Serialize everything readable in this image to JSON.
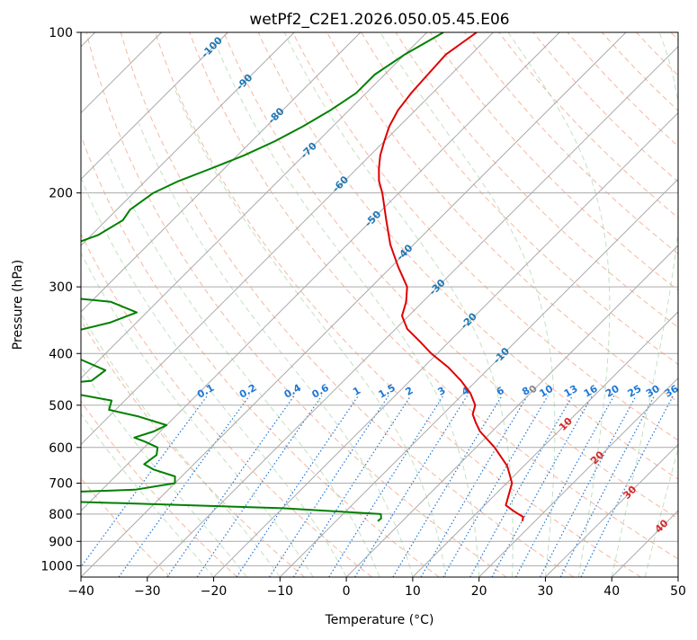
{
  "chart_data": {
    "type": "line",
    "title": "wetPf2_C2E1.2026.050.05.45.E06",
    "xlabel": "Temperature (°C)",
    "ylabel": "Pressure (hPa)",
    "xlim": [
      -40,
      50
    ],
    "ylim": [
      1050,
      100
    ],
    "y_scale": "log",
    "grid": true,
    "x_ticks": [
      -40,
      -30,
      -20,
      -10,
      0,
      10,
      20,
      30,
      40,
      50
    ],
    "y_ticks": [
      100,
      200,
      300,
      400,
      500,
      600,
      700,
      800,
      900,
      1000
    ],
    "skew_deg": 45,
    "colors": {
      "temperature": "#e00000",
      "dewpoint": "#008000",
      "dry_adiabat": "#f2a080",
      "moist_adiabat": "#9acd9a",
      "mixing_ratio": "#1f77d4",
      "isotherm_labels": "#1f77b4",
      "warm_labels": "#d62728"
    },
    "isotherm_labels": [
      -100,
      -90,
      -80,
      -70,
      -60,
      -50,
      -40,
      -30,
      -20,
      -10,
      0,
      10,
      20,
      30,
      40
    ],
    "mixing_ratio_labels": [
      "0.1",
      "0.2",
      "0.4",
      "0.6",
      "1",
      "1.5",
      "2",
      "3",
      "4",
      "6",
      "8",
      "10",
      "13",
      "16",
      "20",
      "25",
      "30",
      "36"
    ],
    "series": [
      {
        "points": [
          {
            "p": 100,
            "t": -62.5
          },
          {
            "p": 110,
            "t": -63.8
          },
          {
            "p": 120,
            "t": -63.5
          },
          {
            "p": 130,
            "t": -63.2
          },
          {
            "p": 140,
            "t": -62.6
          },
          {
            "p": 150,
            "t": -61.5
          },
          {
            "p": 160,
            "t": -60.0
          },
          {
            "p": 170,
            "t": -58.5
          },
          {
            "p": 180,
            "t": -56.7
          },
          {
            "p": 190,
            "t": -54.8
          },
          {
            "p": 200,
            "t": -52.5
          },
          {
            "p": 225,
            "t": -47.8
          },
          {
            "p": 250,
            "t": -43.5
          },
          {
            "p": 275,
            "t": -39.0
          },
          {
            "p": 300,
            "t": -34.6
          },
          {
            "p": 320,
            "t": -32.5
          },
          {
            "p": 340,
            "t": -31.0
          },
          {
            "p": 360,
            "t": -28.2
          },
          {
            "p": 380,
            "t": -24.4
          },
          {
            "p": 400,
            "t": -20.9
          },
          {
            "p": 425,
            "t": -16.2
          },
          {
            "p": 450,
            "t": -12.3
          },
          {
            "p": 475,
            "t": -9.0
          },
          {
            "p": 500,
            "t": -6.5
          },
          {
            "p": 520,
            "t": -5.5
          },
          {
            "p": 540,
            "t": -3.7
          },
          {
            "p": 560,
            "t": -1.8
          },
          {
            "p": 600,
            "t": 2.8
          },
          {
            "p": 650,
            "t": 7.5
          },
          {
            "p": 700,
            "t": 10.8
          },
          {
            "p": 740,
            "t": 12.2
          },
          {
            "p": 770,
            "t": 13.2
          },
          {
            "p": 790,
            "t": 15.3
          },
          {
            "p": 810,
            "t": 17.6
          },
          {
            "p": 825,
            "t": 18.1
          }
        ]
      },
      {
        "points": [
          {
            "p": 100,
            "t": -67.5
          },
          {
            "p": 110,
            "t": -70.0
          },
          {
            "p": 120,
            "t": -71.5
          },
          {
            "p": 130,
            "t": -71.5
          },
          {
            "p": 140,
            "t": -72.8
          },
          {
            "p": 150,
            "t": -74.5
          },
          {
            "p": 160,
            "t": -76.5
          },
          {
            "p": 170,
            "t": -79.0
          },
          {
            "p": 180,
            "t": -82.0
          },
          {
            "p": 190,
            "t": -85.0
          },
          {
            "p": 200,
            "t": -87.0
          },
          {
            "p": 215,
            "t": -88.0
          },
          {
            "p": 225,
            "t": -87.5
          },
          {
            "p": 240,
            "t": -89.0
          },
          {
            "p": 250,
            "t": -91.5
          },
          {
            "p": 265,
            "t": -91.8
          },
          {
            "p": 280,
            "t": -88.5
          },
          {
            "p": 290,
            "t": -89.0
          },
          {
            "p": 298,
            "t": -94.0
          },
          {
            "p": 302,
            "t": -100.5
          },
          {
            "p": 308,
            "t": -92.0
          },
          {
            "p": 320,
            "t": -77.0
          },
          {
            "p": 335,
            "t": -71.5
          },
          {
            "p": 350,
            "t": -74.0
          },
          {
            "p": 370,
            "t": -80.0
          },
          {
            "p": 390,
            "t": -80.5
          },
          {
            "p": 410,
            "t": -73.0
          },
          {
            "p": 430,
            "t": -67.5
          },
          {
            "p": 450,
            "t": -68.0
          },
          {
            "p": 465,
            "t": -78.5
          },
          {
            "p": 475,
            "t": -69.0
          },
          {
            "p": 490,
            "t": -62.0
          },
          {
            "p": 510,
            "t": -61.0
          },
          {
            "p": 525,
            "t": -55.5
          },
          {
            "p": 545,
            "t": -50.0
          },
          {
            "p": 560,
            "t": -51.0
          },
          {
            "p": 575,
            "t": -53.0
          },
          {
            "p": 585,
            "t": -50.8
          },
          {
            "p": 600,
            "t": -48.0
          },
          {
            "p": 620,
            "t": -47.0
          },
          {
            "p": 645,
            "t": -47.5
          },
          {
            "p": 660,
            "t": -45.3
          },
          {
            "p": 680,
            "t": -41.0
          },
          {
            "p": 700,
            "t": -40.0
          },
          {
            "p": 720,
            "t": -45.0
          },
          {
            "p": 735,
            "t": -65.0
          },
          {
            "p": 745,
            "t": -80.0
          },
          {
            "p": 760,
            "t": -50.0
          },
          {
            "p": 780,
            "t": -20.0
          },
          {
            "p": 800,
            "t": -4.3
          },
          {
            "p": 815,
            "t": -3.6
          },
          {
            "p": 825,
            "t": -3.7
          }
        ]
      }
    ]
  }
}
